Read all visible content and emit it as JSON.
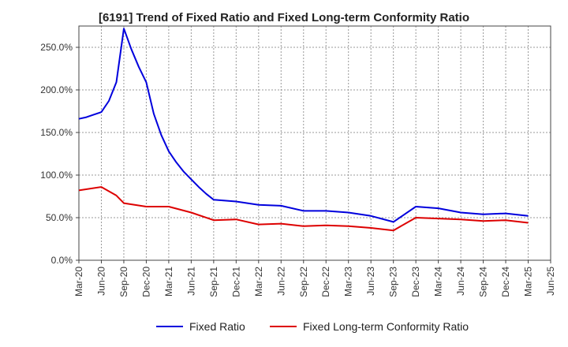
{
  "chart_data": {
    "type": "line",
    "title": "[6191]  Trend of Fixed Ratio and Fixed Long-term Conformity Ratio",
    "xlabel": "",
    "ylabel": "",
    "ylim": [
      0,
      275
    ],
    "y_ticks": [
      0,
      50,
      100,
      150,
      200,
      250
    ],
    "y_tick_labels": [
      "0.0%",
      "50.0%",
      "100.0%",
      "150.0%",
      "200.0%",
      "250.0%"
    ],
    "x_tick_labels": [
      "Mar-20",
      "Jun-20",
      "Sep-20",
      "Dec-20",
      "Mar-21",
      "Jun-21",
      "Sep-21",
      "Dec-21",
      "Mar-22",
      "Jun-22",
      "Sep-22",
      "Dec-22",
      "Mar-23",
      "Jun-23",
      "Sep-23",
      "Dec-23",
      "Mar-24",
      "Jun-24",
      "Sep-24",
      "Dec-24",
      "Mar-25",
      "Jun-25"
    ],
    "grid": true,
    "legend_position": "bottom",
    "series": [
      {
        "name": "Fixed Ratio",
        "color": "#0000dd",
        "points": [
          [
            "Mar-20",
            166
          ],
          [
            "Apr-20",
            168
          ],
          [
            "May-20",
            171
          ],
          [
            "Jun-20",
            174
          ],
          [
            "Jul-20",
            187
          ],
          [
            "Aug-20",
            209
          ],
          [
            "Sep-20",
            272
          ],
          [
            "Oct-20",
            248
          ],
          [
            "Nov-20",
            227
          ],
          [
            "Dec-20",
            209
          ],
          [
            "Jan-21",
            172
          ],
          [
            "Feb-21",
            147
          ],
          [
            "Mar-21",
            128
          ],
          [
            "Apr-21",
            115
          ],
          [
            "May-21",
            104
          ],
          [
            "Jun-21",
            95
          ],
          [
            "Jul-21",
            86
          ],
          [
            "Aug-21",
            78
          ],
          [
            "Sep-21",
            71
          ],
          [
            "Dec-21",
            69
          ],
          [
            "Mar-22",
            65
          ],
          [
            "Jun-22",
            64
          ],
          [
            "Sep-22",
            58
          ],
          [
            "Dec-22",
            58
          ],
          [
            "Mar-23",
            56
          ],
          [
            "Jun-23",
            52
          ],
          [
            "Sep-23",
            45
          ],
          [
            "Dec-23",
            63
          ],
          [
            "Mar-24",
            61
          ],
          [
            "Jun-24",
            56
          ],
          [
            "Sep-24",
            54
          ],
          [
            "Dec-24",
            55
          ],
          [
            "Mar-25",
            52
          ]
        ]
      },
      {
        "name": "Fixed Long-term Conformity Ratio",
        "color": "#dd0000",
        "points": [
          [
            "Mar-20",
            82
          ],
          [
            "Jun-20",
            86
          ],
          [
            "Aug-20",
            76
          ],
          [
            "Sep-20",
            67
          ],
          [
            "Dec-20",
            63
          ],
          [
            "Mar-21",
            63
          ],
          [
            "Jun-21",
            56
          ],
          [
            "Sep-21",
            47
          ],
          [
            "Dec-21",
            48
          ],
          [
            "Mar-22",
            42
          ],
          [
            "Jun-22",
            43
          ],
          [
            "Sep-22",
            40
          ],
          [
            "Dec-22",
            41
          ],
          [
            "Mar-23",
            40
          ],
          [
            "Jun-23",
            38
          ],
          [
            "Sep-23",
            35
          ],
          [
            "Dec-23",
            50
          ],
          [
            "Mar-24",
            49
          ],
          [
            "Jun-24",
            48
          ],
          [
            "Sep-24",
            46
          ],
          [
            "Dec-24",
            47
          ],
          [
            "Mar-25",
            44
          ]
        ]
      }
    ]
  }
}
